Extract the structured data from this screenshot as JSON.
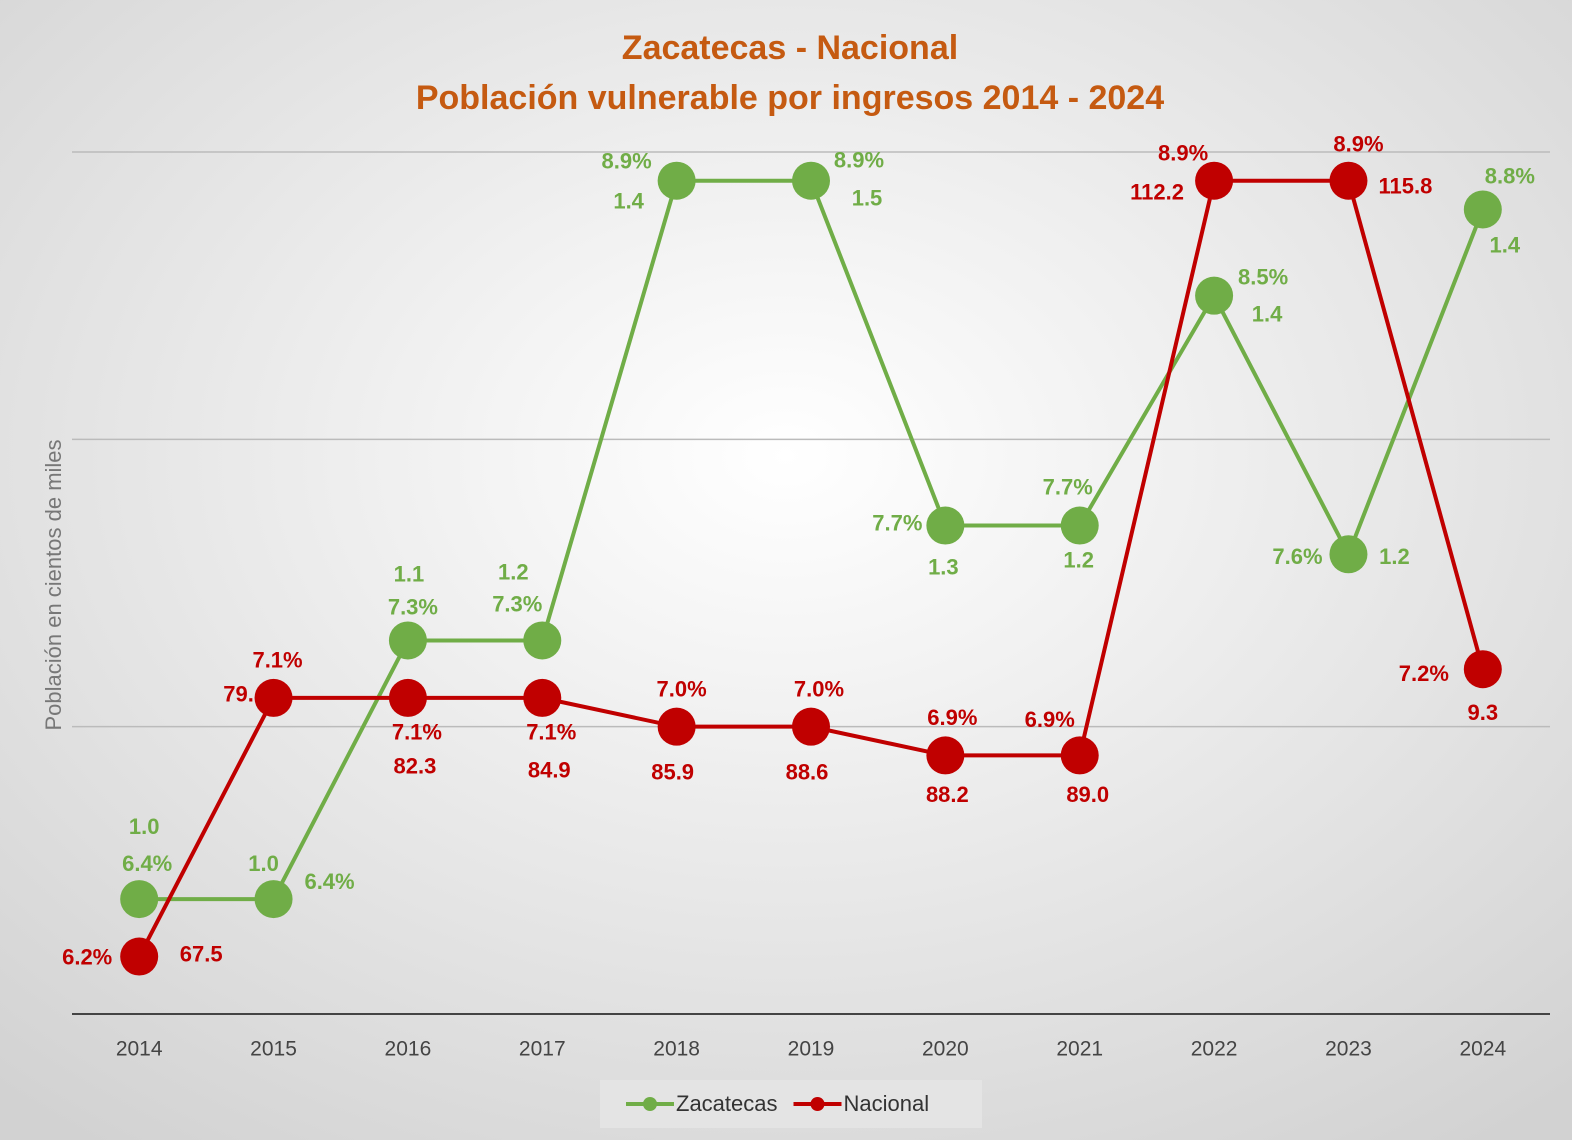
{
  "chart_data": {
    "type": "line",
    "title": "Zacatecas - Nacional",
    "subtitle": "Población vulnerable por ingresos 2014 - 2024",
    "y_axis_label": "Población en cientos de miles",
    "categories": [
      "2014",
      "2015",
      "2016",
      "2017",
      "2018",
      "2019",
      "2020",
      "2021",
      "2022",
      "2023",
      "2024"
    ],
    "series": [
      {
        "name": "Zacatecas",
        "color": "#70ad47",
        "values": [
          6.4,
          6.4,
          7.3,
          7.3,
          8.9,
          8.9,
          7.7,
          7.7,
          8.5,
          7.6,
          8.8
        ],
        "value_labels": [
          "6.4%",
          "6.4%",
          "7.3%",
          "7.3%",
          "8.9%",
          "8.9%",
          "7.7%",
          "7.7%",
          "8.5%",
          "7.6%",
          "8.8%"
        ],
        "data_labels": [
          "1.0",
          "1.0",
          "1.1",
          "1.2",
          "1.4",
          "1.5",
          "1.3",
          "1.2",
          "1.4",
          "1.2",
          "1.4"
        ]
      },
      {
        "name": "Nacional",
        "color": "#c00000",
        "values": [
          6.2,
          7.1,
          7.1,
          7.1,
          7.0,
          7.0,
          6.9,
          6.9,
          8.9,
          8.9,
          7.2
        ],
        "value_labels": [
          "6.2%",
          "7.1%",
          "7.1%",
          "7.1%",
          "7.0%",
          "7.0%",
          "6.9%",
          "6.9%",
          "8.9%",
          "8.9%",
          "7.2%"
        ],
        "data_labels": [
          "67.5",
          "79.",
          "82.3",
          "84.9",
          "85.9",
          "88.6",
          "88.2",
          "89.0",
          "112.2",
          "115.8",
          "9.3"
        ]
      }
    ],
    "ylim": [
      6,
      9
    ],
    "yticks": [
      6,
      7,
      8,
      9
    ],
    "grid": true,
    "legend": "bottom"
  }
}
